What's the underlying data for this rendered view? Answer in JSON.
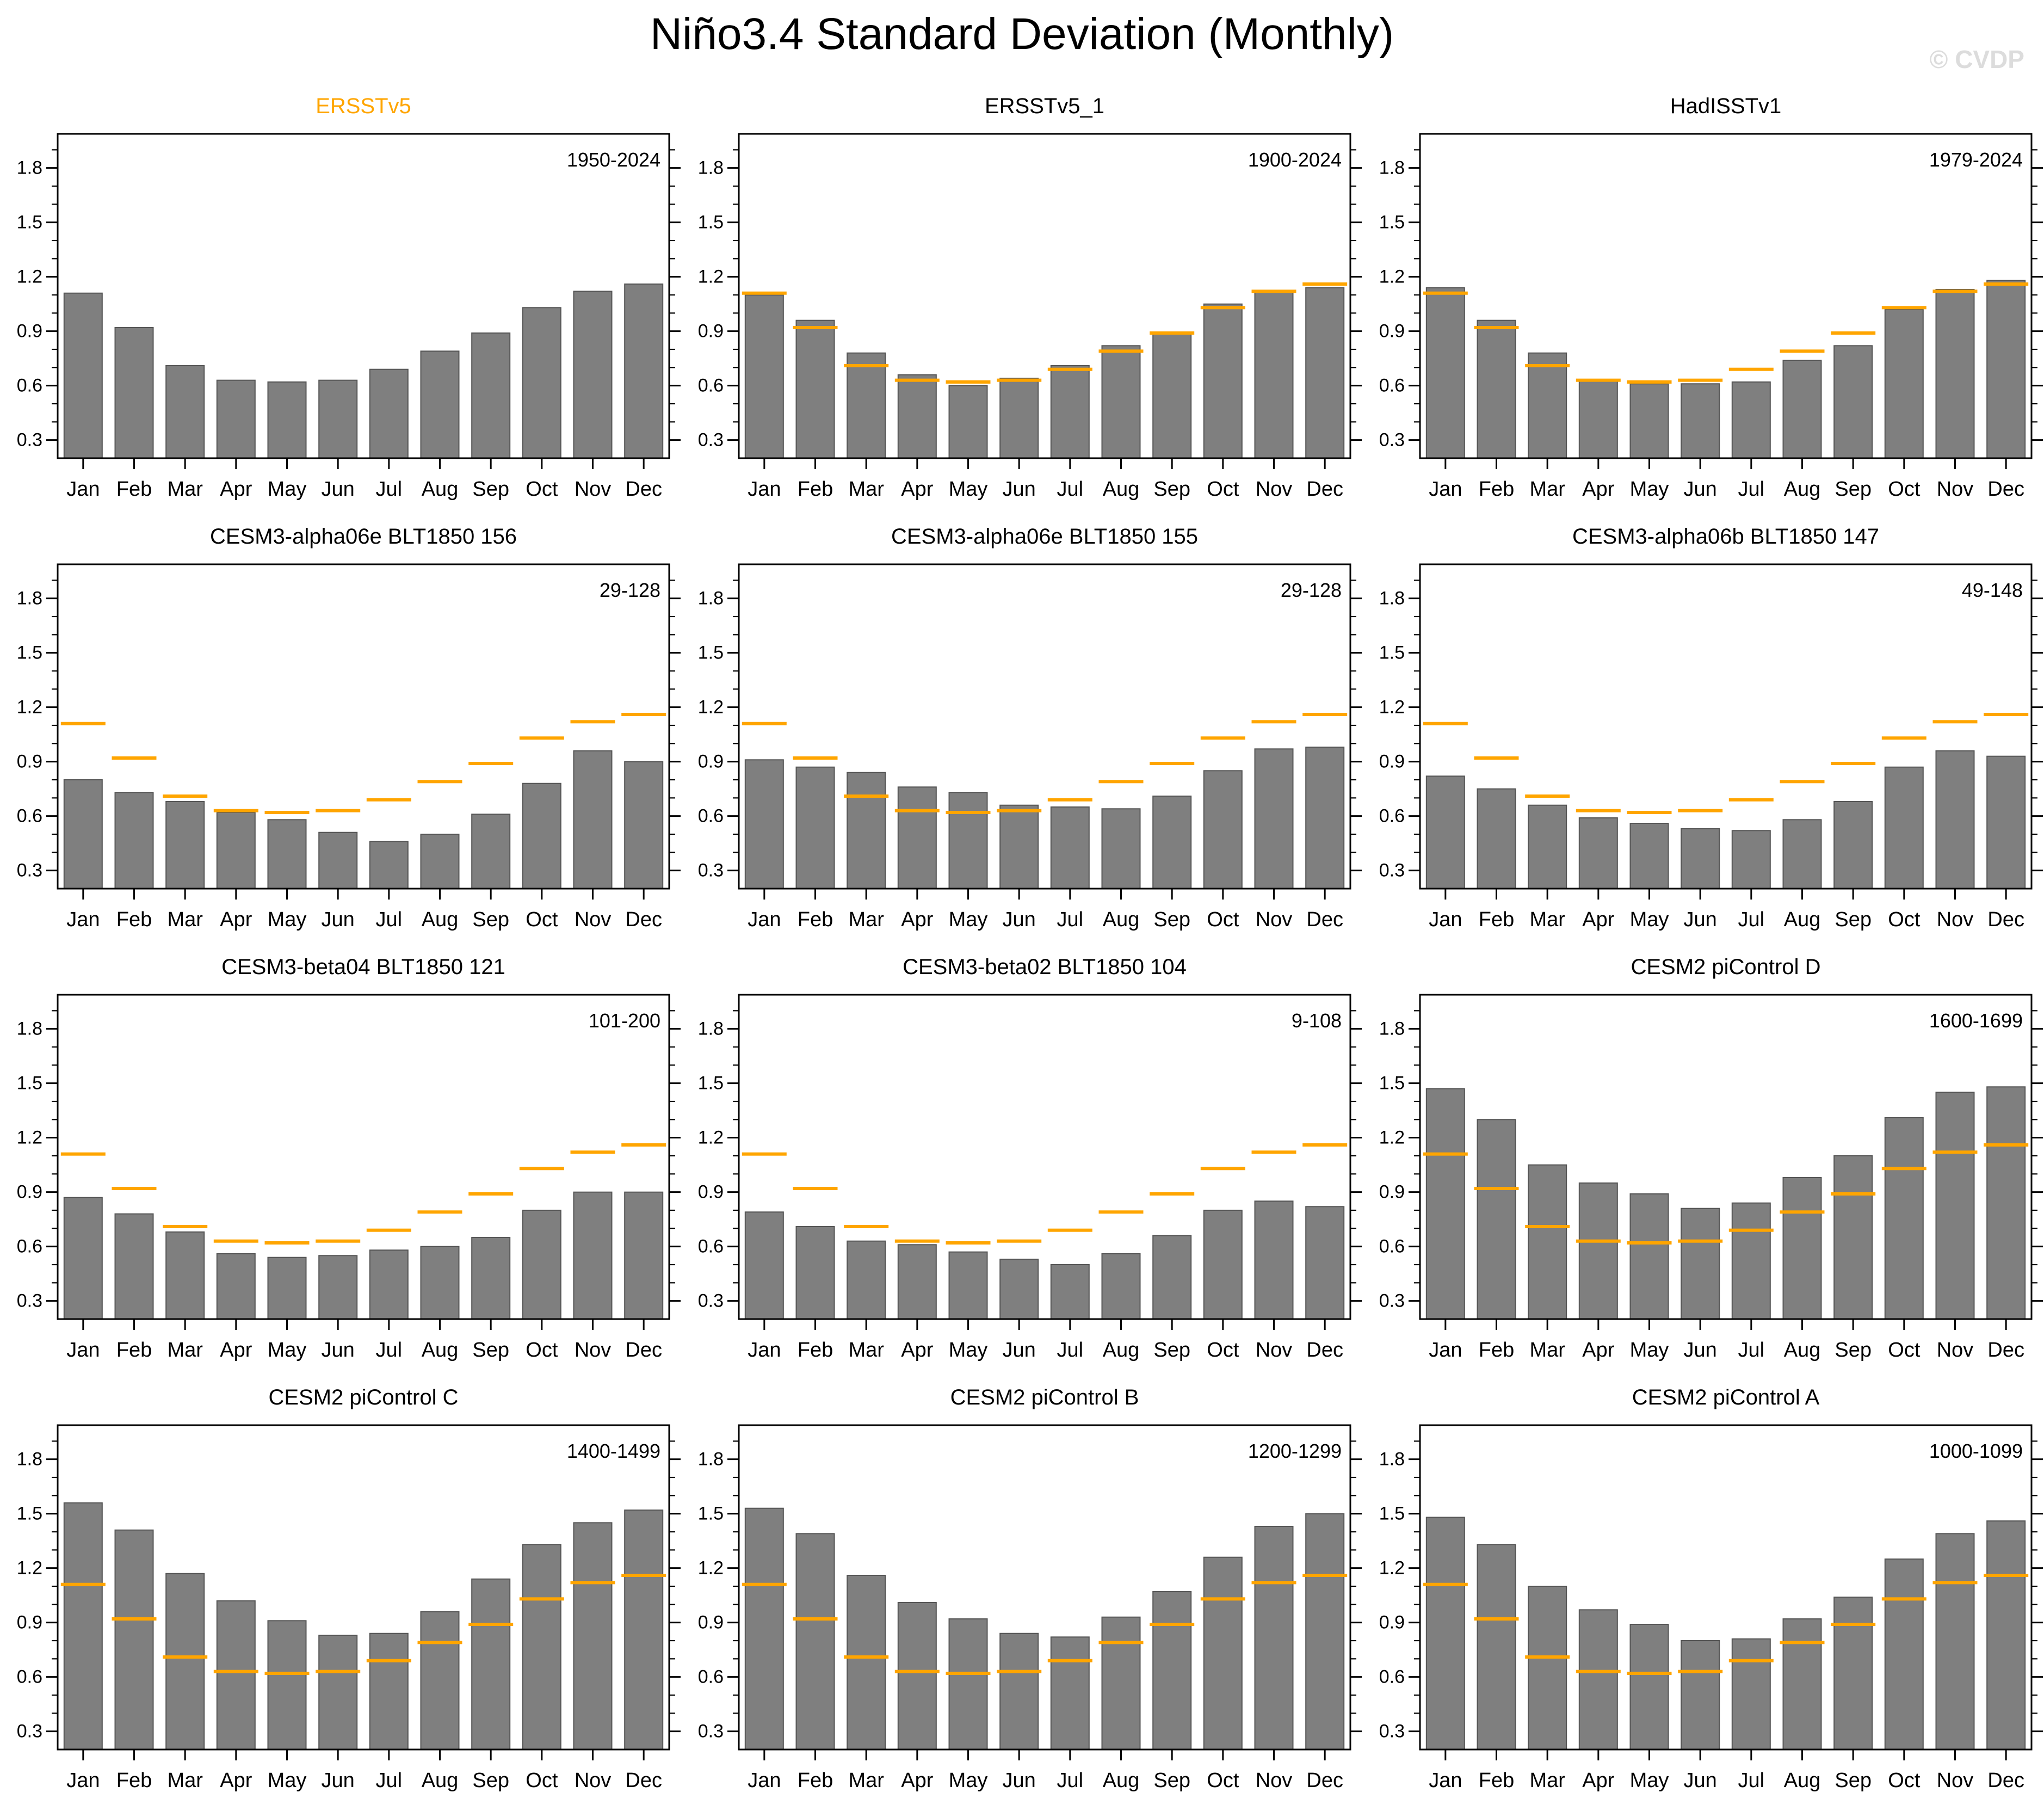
{
  "page": {
    "title": "Niño3.4 Standard Deviation (Monthly)",
    "watermark": "© CVDP"
  },
  "chart_data": {
    "type": "bar",
    "title": "Niño3.4 Standard Deviation (Monthly)",
    "layout": {
      "rows": 4,
      "cols": 3,
      "grid": "off",
      "legend": "none"
    },
    "categories": [
      "Jan",
      "Feb",
      "Mar",
      "Apr",
      "May",
      "Jun",
      "Jul",
      "Aug",
      "Sep",
      "Oct",
      "Nov",
      "Dec"
    ],
    "y_axis": {
      "min": 0.2,
      "max": 1.99,
      "major_ticks": [
        0.3,
        0.6,
        0.9,
        1.2,
        1.5,
        1.8
      ],
      "major_tick_labels": [
        "0.3",
        "0.6",
        "0.9",
        "1.2",
        "1.5",
        "1.8"
      ],
      "minor_step": 0.1
    },
    "bar_color": "#7f7f7f",
    "bar_edge_color": "#555555",
    "reference": {
      "name": "ERSSTv5",
      "color": "#ffa500",
      "values": [
        1.11,
        0.92,
        0.71,
        0.63,
        0.62,
        0.63,
        0.69,
        0.79,
        0.89,
        1.03,
        1.12,
        1.16
      ]
    },
    "panels": [
      {
        "title": "ERSSTv5",
        "period": "1950-2024",
        "title_color": "#ffa500",
        "show_reference": false,
        "values": [
          1.11,
          0.92,
          0.71,
          0.63,
          0.62,
          0.63,
          0.69,
          0.79,
          0.89,
          1.03,
          1.12,
          1.16
        ]
      },
      {
        "title": "ERSSTv5_1",
        "period": "1900-2024",
        "title_color": "#000000",
        "show_reference": true,
        "values": [
          1.1,
          0.96,
          0.78,
          0.66,
          0.6,
          0.64,
          0.71,
          0.82,
          0.89,
          1.05,
          1.12,
          1.14
        ]
      },
      {
        "title": "HadISSTv1",
        "period": "1979-2024",
        "title_color": "#000000",
        "show_reference": true,
        "values": [
          1.14,
          0.96,
          0.78,
          0.63,
          0.61,
          0.61,
          0.62,
          0.74,
          0.82,
          1.02,
          1.13,
          1.18
        ]
      },
      {
        "title": "CESM3-alpha06e BLT1850 156",
        "period": "29-128",
        "title_color": "#000000",
        "show_reference": true,
        "values": [
          0.8,
          0.73,
          0.68,
          0.62,
          0.58,
          0.51,
          0.46,
          0.5,
          0.61,
          0.78,
          0.96,
          0.9
        ]
      },
      {
        "title": "CESM3-alpha06e BLT1850 155",
        "period": "29-128",
        "title_color": "#000000",
        "show_reference": true,
        "values": [
          0.91,
          0.87,
          0.84,
          0.76,
          0.73,
          0.66,
          0.65,
          0.64,
          0.71,
          0.85,
          0.97,
          0.98
        ]
      },
      {
        "title": "CESM3-alpha06b BLT1850 147",
        "period": "49-148",
        "title_color": "#000000",
        "show_reference": true,
        "values": [
          0.82,
          0.75,
          0.66,
          0.59,
          0.56,
          0.53,
          0.52,
          0.58,
          0.68,
          0.87,
          0.96,
          0.93
        ]
      },
      {
        "title": "CESM3-beta04 BLT1850 121",
        "period": "101-200",
        "title_color": "#000000",
        "show_reference": true,
        "values": [
          0.87,
          0.78,
          0.68,
          0.56,
          0.54,
          0.55,
          0.58,
          0.6,
          0.65,
          0.8,
          0.9,
          0.9
        ]
      },
      {
        "title": "CESM3-beta02 BLT1850 104",
        "period": "9-108",
        "title_color": "#000000",
        "show_reference": true,
        "values": [
          0.79,
          0.71,
          0.63,
          0.61,
          0.57,
          0.53,
          0.5,
          0.56,
          0.66,
          0.8,
          0.85,
          0.82
        ]
      },
      {
        "title": "CESM2 piControl D",
        "period": "1600-1699",
        "title_color": "#000000",
        "show_reference": true,
        "values": [
          1.47,
          1.3,
          1.05,
          0.95,
          0.89,
          0.81,
          0.84,
          0.98,
          1.1,
          1.31,
          1.45,
          1.48
        ]
      },
      {
        "title": "CESM2 piControl C",
        "period": "1400-1499",
        "title_color": "#000000",
        "show_reference": true,
        "values": [
          1.56,
          1.41,
          1.17,
          1.02,
          0.91,
          0.83,
          0.84,
          0.96,
          1.14,
          1.33,
          1.45,
          1.52
        ]
      },
      {
        "title": "CESM2 piControl B",
        "period": "1200-1299",
        "title_color": "#000000",
        "show_reference": true,
        "values": [
          1.53,
          1.39,
          1.16,
          1.01,
          0.92,
          0.84,
          0.82,
          0.93,
          1.07,
          1.26,
          1.43,
          1.5
        ]
      },
      {
        "title": "CESM2 piControl A",
        "period": "1000-1099",
        "title_color": "#000000",
        "show_reference": true,
        "values": [
          1.48,
          1.33,
          1.1,
          0.97,
          0.89,
          0.8,
          0.81,
          0.92,
          1.04,
          1.25,
          1.39,
          1.46
        ]
      }
    ]
  }
}
